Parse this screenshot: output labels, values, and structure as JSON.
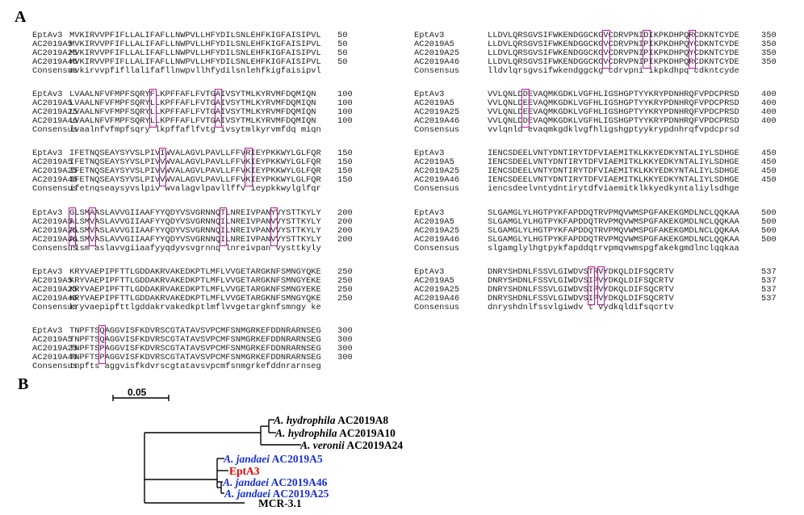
{
  "panel_a_label": "A",
  "panel_b_label": "B",
  "alignment": {
    "left_blocks": [
      {
        "rows": [
          {
            "name": "EptAv3",
            "seq": "MVKIRVVPFIFLLALIFAFLLNWPVLLHFYDILSNLEHFKIGFAISIPVL",
            "pos": "50"
          },
          {
            "name": "AC2019A5",
            "seq": "MVKIRVVPFIFLLALIFAFLLNWPVLLHFYDILSNLEHFKIGFAISIPVL",
            "pos": "50"
          },
          {
            "name": "AC2019A25",
            "seq": "MVKIRVVPFIFLLALIFAFLLNWPVLLHFYDILSNLEHFKIGFAISIPVL",
            "pos": "50"
          },
          {
            "name": "AC2019A46",
            "seq": "MVKIRVVPFIFLLALIFAFLLNWPVLLHFYDILSNLEHFKIGFAISIPVL",
            "pos": "50"
          },
          {
            "name": "Consensus",
            "seq": "mvkirvvpfifllalifafllnwpvllhfydilsnlehfkigfaisipvl",
            "pos": ""
          }
        ],
        "boxes": []
      },
      {
        "rows": [
          {
            "name": "EptAv3",
            "seq": "LVAALNFVFMPFSQRYFLKPFFAFLFVTGAIVSYTMLKYRVMFDQMIQN",
            "pos": "100"
          },
          {
            "name": "AC2019A5",
            "seq": "LVAALNFVFMPFSQRYLLKPFFAFLFVTGAIVSYTMLKYRVMFDQMIQN",
            "pos": "100"
          },
          {
            "name": "AC2019A25",
            "seq": "LVAALNFVFMPFSQRYLLKPFFAFLFVTGAIVSYTMLKYRVMFDQMIQN",
            "pos": "100"
          },
          {
            "name": "AC2019A46",
            "seq": "LVAALNFVFMPFSQRYLLKPFFAFLFVTGAIVSYTMLKYRVMFDQMIQN",
            "pos": "100"
          },
          {
            "name": "Consensus",
            "seq": "lvaalnfvfmpfsqry lkpffaflfvtg ivsytmlkyrvmfdq miqn",
            "pos": ""
          }
        ],
        "boxes": [
          16,
          29
        ]
      },
      {
        "rows": [
          {
            "name": "EptAv3",
            "seq": "IFETNQSEAYSYVSLPIVIWVALAGVLPAVLLFFVRIEYPKKWYLGLFQR",
            "pos": "150"
          },
          {
            "name": "AC2019A5",
            "seq": "IFETNQSEAYSYVSLPIVVWVALAGVLPAVLLFFVKIEYPKKWYLGLFQR",
            "pos": "150"
          },
          {
            "name": "AC2019A25",
            "seq": "IFETNQSEAYSYVSLPIVVWVALAGVLPAVLLFFVKIEYPKKWYLGLFQR",
            "pos": "150"
          },
          {
            "name": "AC2019A46",
            "seq": "IFETNQSEAYSYVSLPIVVWVALAGVLPAVLLFFVKIEYPKKWYLGLFQR",
            "pos": "150"
          },
          {
            "name": "Consensus",
            "seq": "ifetnqseaysyvslpiv wvalagvlpavllffv ieypkkwylglfqr",
            "pos": ""
          }
        ],
        "boxes": [
          18,
          35
        ]
      },
      {
        "rows": [
          {
            "name": "EptAv3",
            "seq": "GLSMAASLAVVGIIAAFYYQDYVSVGRNNQTLNREIVPANYVYSTTKYLY",
            "pos": "200"
          },
          {
            "name": "AC2019A5",
            "seq": "ALSMVASLAVVGIIAAFYYQDYVSVGRNNQILNREIVPANVVYSTTKYLY",
            "pos": "200"
          },
          {
            "name": "AC2019A25",
            "seq": "ALSMVASLAVVGIIAAFYYQDYVSVGRNNQILNREIVPANVVYSTTKYLY",
            "pos": "200"
          },
          {
            "name": "AC2019A46",
            "seq": "ALSMVASLAVVGIIAAFYYQDYVSVGRNNQILNREIVPANVVYSTTKYLY",
            "pos": "200"
          },
          {
            "name": "Consensus",
            "seq": " lsm aslavvgiiaafyyqdyvsvgrnnq lnreivpan vysttkyly",
            "pos": ""
          }
        ],
        "boxes": [
          0,
          4,
          30,
          40
        ]
      },
      {
        "rows": [
          {
            "name": "EptAv3",
            "seq": "KRYVAEPIPFTTLGDDAKRVAKEDKPTLMFLVVGETARGKNFSMNGYQKE",
            "pos": "250"
          },
          {
            "name": "AC2019A5",
            "seq": "KRYVAEPIPFTTLGDDAKRVAKEDKPTLMFLVVGETARGKNFSMNGYEKE",
            "pos": "250"
          },
          {
            "name": "AC2019A25",
            "seq": "KRYVAEPIPFTTLGDDAKRVAKEDKPTLMFLVVGETARGKNFSMNGYEKE",
            "pos": "250"
          },
          {
            "name": "AC2019A46",
            "seq": "KRYVAEPIPFTTLGDDAKRVAKEDKPTLMFLVVGETARGKNFSMNGYQKE",
            "pos": "250"
          },
          {
            "name": "Consensus",
            "seq": "kryvaepipfttlgddakrvakedkptlmflvvgetargknfsmngy ke",
            "pos": ""
          }
        ],
        "boxes": []
      },
      {
        "rows": [
          {
            "name": "EptAv3",
            "seq": "TNPFTSQAGGVISFKDVRSCGTATAVSVPCMFSNMGRKEFDDNRARNSEG",
            "pos": "300"
          },
          {
            "name": "AC2019A5",
            "seq": "TNPFTSQAGGVISFKDVRSCGTATAVSVPCMFSNMGRKEFDDNRARNSEG",
            "pos": "300"
          },
          {
            "name": "AC2019A25",
            "seq": "TNPFTSPAGGVISFKDVRSCGTATAVSVPCMFSNMGRKEFDDNRARNSEG",
            "pos": "300"
          },
          {
            "name": "AC2019A46",
            "seq": "TNPFTSPAGGVISFKDVRSCGTATAVSVPCMFSNMGRKEFDDNRARNSEG",
            "pos": "300"
          },
          {
            "name": "Consensus",
            "seq": "tnpfts aggvisfkdvrscgtatavsvpcmfsnmgrkefddnrarnseg",
            "pos": ""
          }
        ],
        "boxes": [
          6
        ]
      }
    ],
    "right_blocks": [
      {
        "rows": [
          {
            "name": "EptAv3",
            "seq": "LLDVLQRSGVSIFWKENDGGCKGVCDRVPNIDIKPKDHPQRCDKNTCYDE",
            "pos": "350"
          },
          {
            "name": "AC2019A5",
            "seq": "LLDVLQRSGVSIFWKENDGGCKGVCDRVPNIPIKPKDHPQYCDKNTCYDE",
            "pos": "350"
          },
          {
            "name": "AC2019A25",
            "seq": "LLDVLQRSGVSIFWKENDGGCKGVCDRVPNIPIKPKDHPQYCDKNTCYDE",
            "pos": "350"
          },
          {
            "name": "AC2019A46",
            "seq": "LLDVLQRSGVSIFWKENDGGCKGVCDRVPNIPIKPKDHPQRCDKNTCYDE",
            "pos": "350"
          },
          {
            "name": "Consensus",
            "seq": "lldvlqrsgvsifwkendggckg cdrvpni ikpkdhpq cdkntcyde",
            "pos": ""
          }
        ],
        "boxes": [
          23,
          31,
          40
        ]
      },
      {
        "rows": [
          {
            "name": "EptAv3",
            "seq": "VVLQNLDDEVAQMKGDKLVGFHLIGSHGPTYYKRYPDNHRQFVPDCPRSD",
            "pos": "400"
          },
          {
            "name": "AC2019A5",
            "seq": "VVLQNLDEEVAQMKGDKLVGFHLIGSHGPTYYKRYPDNHRQFVPDCPRSD",
            "pos": "400"
          },
          {
            "name": "AC2019A25",
            "seq": "VVLQNLDEEVAQMKGDKLVGFHLIGSHGPTYYKRYPDNHRQFVPDCPRSD",
            "pos": "400"
          },
          {
            "name": "AC2019A46",
            "seq": "VVLQNLDDEVAQMKGDKLVGFHLIGSHGPTYYKRYPDNHRQFVPDCPRSD",
            "pos": "400"
          },
          {
            "name": "Consensus",
            "seq": "vvlqnld evaqmkgdklvgfhligshgptyykrypdnhrqfvpdcprsd",
            "pos": ""
          }
        ],
        "boxes": [
          7
        ]
      },
      {
        "rows": [
          {
            "name": "EptAv3",
            "seq": "IENCSDEELVNTYDNTIRYTDFVIAEMITKLKKYEDKYNTALIYLSDHGE",
            "pos": "450"
          },
          {
            "name": "AC2019A5",
            "seq": "IENCSDEELVNTYDNTIRYTDFVIAEMITKLKKYEDKYNTALIYLSDHGE",
            "pos": "450"
          },
          {
            "name": "AC2019A25",
            "seq": "IENCSDEELVNTYDNTIRYTDFVIAEMITKLKKYEDKYNTALIYLSDHGE",
            "pos": "450"
          },
          {
            "name": "AC2019A46",
            "seq": "IENCSDEELVNTYDNTIRYTDFVIAEMITKLKKYEDKYNTALIYLSDHGE",
            "pos": "450"
          },
          {
            "name": "Consensus",
            "seq": "iencsdeelvntydntirytdfviaemitklkkyedkyntaliylsdhge",
            "pos": ""
          }
        ],
        "boxes": []
      },
      {
        "rows": [
          {
            "name": "EptAv3",
            "seq": "SLGAMGLYLHGTPYKFAPDDQTRVPMQVWMSPGFAKEKGMDLNCLQQKAA",
            "pos": "500"
          },
          {
            "name": "AC2019A5",
            "seq": "SLGAMGLYLHGTPYKFAPDDQTRVPMQVWMSPGFAKEKGMDLNCLQQKAA",
            "pos": "500"
          },
          {
            "name": "AC2019A25",
            "seq": "SLGAMGLYLHGTPYKFAPDDQTRVPMQVWMSPGFAKEKGMDLNCLQQKAA",
            "pos": "500"
          },
          {
            "name": "AC2019A46",
            "seq": "SLGAMGLYLHGTPYKFAPDDQTRVPMQVWMSPGFAKEKGMDLNCLQQKAA",
            "pos": "500"
          },
          {
            "name": "Consensus",
            "seq": "slgamglylhgtpykfapddqtrvpmqvwmspgfakekgmdlnclqqkaa",
            "pos": ""
          }
        ],
        "boxes": []
      },
      {
        "rows": [
          {
            "name": "EptAv3",
            "seq": "DNRYSHDNLFSSVLGIWDVSTRVYDKQLDIFSQCRTV",
            "pos": "537"
          },
          {
            "name": "AC2019A5",
            "seq": "DNRYSHDNLFSSVLGIWDVSIPVYDKQLDIFSQCRTV",
            "pos": "537"
          },
          {
            "name": "AC2019A25",
            "seq": "DNRYSHDNLFSSVLGIWDVSIPVYDKQLDIFSQCRTV",
            "pos": "537"
          },
          {
            "name": "AC2019A46",
            "seq": "DNRYSHDNLFSSVLGIWDVSIPVYDKQLDIFSQCRTV",
            "pos": "537"
          },
          {
            "name": "Consensus",
            "seq": "dnryshdnlfssvlgiwdv t vydkqldifsqcrtv",
            "pos": ""
          }
        ],
        "boxes": [
          20,
          22
        ]
      }
    ]
  },
  "tree": {
    "scale_label": "0.05",
    "tips": [
      {
        "species": "A. hydrophila",
        "strain": "AC2019A8",
        "color": "#000000"
      },
      {
        "species": "A. hydrophila",
        "strain": "AC2019A10",
        "color": "#000000"
      },
      {
        "species": "A. veronii",
        "strain": "AC2019A24",
        "color": "#000000"
      },
      {
        "species": "A. jandaei",
        "strain": "AC2019A5",
        "color": "#1a2fd0"
      },
      {
        "species": "",
        "strain": "EptA3",
        "color": "#e00000"
      },
      {
        "species": "A. jandaei",
        "strain": "AC2019A46",
        "color": "#1a2fd0"
      },
      {
        "species": "A. jandaei",
        "strain": "AC2019A25",
        "color": "#1a2fd0"
      },
      {
        "species": "",
        "strain": "MCR-3.1",
        "color": "#000000"
      }
    ]
  },
  "colors": {
    "box": "#b3189b",
    "jandaei_blue": "#1a2fd0",
    "eptA3_red": "#e00000"
  }
}
